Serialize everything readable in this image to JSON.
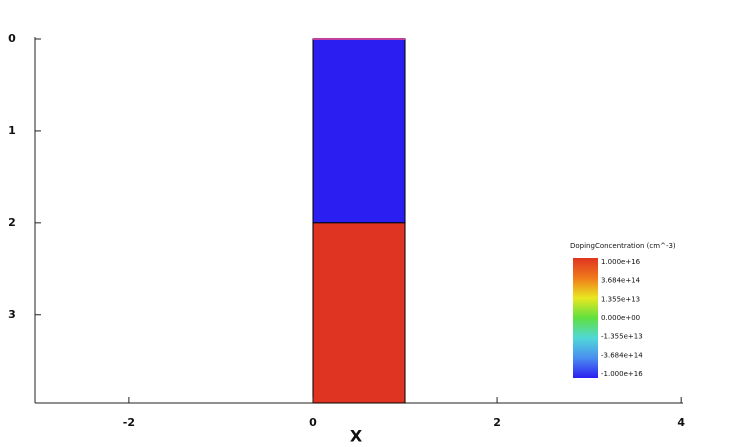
{
  "chart_data": {
    "type": "region",
    "xlabel": "X",
    "xlim": [
      -3.02,
      4.02
    ],
    "xticks": [
      -2,
      0,
      2,
      4
    ],
    "ylim": [
      0,
      3.96
    ],
    "yticks": [
      0,
      1,
      2,
      3
    ],
    "y_inverted": true,
    "regions": [
      {
        "x": [
          0,
          1
        ],
        "y": [
          0,
          2
        ],
        "color": "#2a1ff0"
      },
      {
        "x": [
          0,
          1
        ],
        "y": [
          2,
          3.96
        ],
        "color": "#e03422"
      }
    ],
    "colorbar": {
      "title": "DopingConcentration (cm^-3)",
      "labels": [
        "1.000e+16",
        "3.684e+14",
        "1.355e+13",
        "0.000e+00",
        "-1.355e+13",
        "-3.684e+14",
        "-1.000e+16"
      ],
      "colors": [
        "#e03422",
        "#f07a1a",
        "#e8e820",
        "#60e040",
        "#50d8d8",
        "#4a8ef0",
        "#2a1ff0"
      ]
    }
  }
}
